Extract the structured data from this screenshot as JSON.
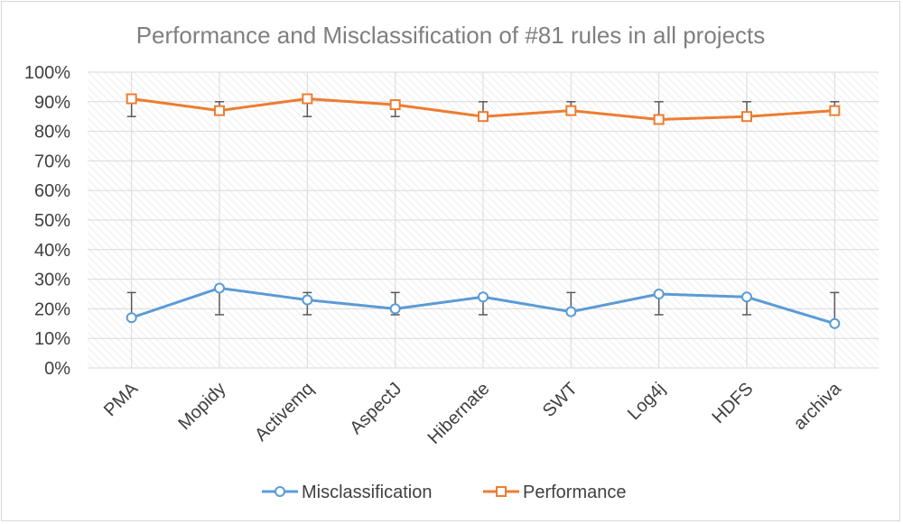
{
  "chart_data": {
    "type": "line",
    "title": "Performance and Misclassification of #81 rules in all projects",
    "xlabel": "",
    "ylabel": "",
    "categories": [
      "PMA",
      "Mopidy",
      "Activemq",
      "AspectJ",
      "Hibernate",
      "SWT",
      "Log4j",
      "HDFS",
      "archiva"
    ],
    "ylim": [
      0,
      1
    ],
    "yticks": [
      "0%",
      "10%",
      "20%",
      "30%",
      "40%",
      "50%",
      "60%",
      "70%",
      "80%",
      "90%",
      "100%"
    ],
    "grid": true,
    "legend_position": "bottom",
    "series": [
      {
        "name": "Misclassification",
        "color": "#5b9bd5",
        "marker": "circle",
        "values": [
          0.17,
          0.27,
          0.23,
          0.2,
          0.24,
          0.19,
          0.25,
          0.24,
          0.15
        ],
        "error_low": [
          0.17,
          0.18,
          0.18,
          0.18,
          0.18,
          0.18,
          0.18,
          0.18,
          0.15
        ],
        "error_high": [
          0.255,
          0.27,
          0.255,
          0.255,
          0.24,
          0.255,
          0.25,
          0.24,
          0.255
        ]
      },
      {
        "name": "Performance",
        "color": "#ed7d31",
        "marker": "square",
        "values": [
          0.91,
          0.87,
          0.91,
          0.89,
          0.85,
          0.87,
          0.84,
          0.85,
          0.87
        ],
        "error_low": [
          0.85,
          0.86,
          0.85,
          0.85,
          0.85,
          0.86,
          0.84,
          0.85,
          0.86
        ],
        "error_high": [
          0.91,
          0.9,
          0.91,
          0.89,
          0.9,
          0.9,
          0.9,
          0.9,
          0.9
        ]
      }
    ]
  }
}
